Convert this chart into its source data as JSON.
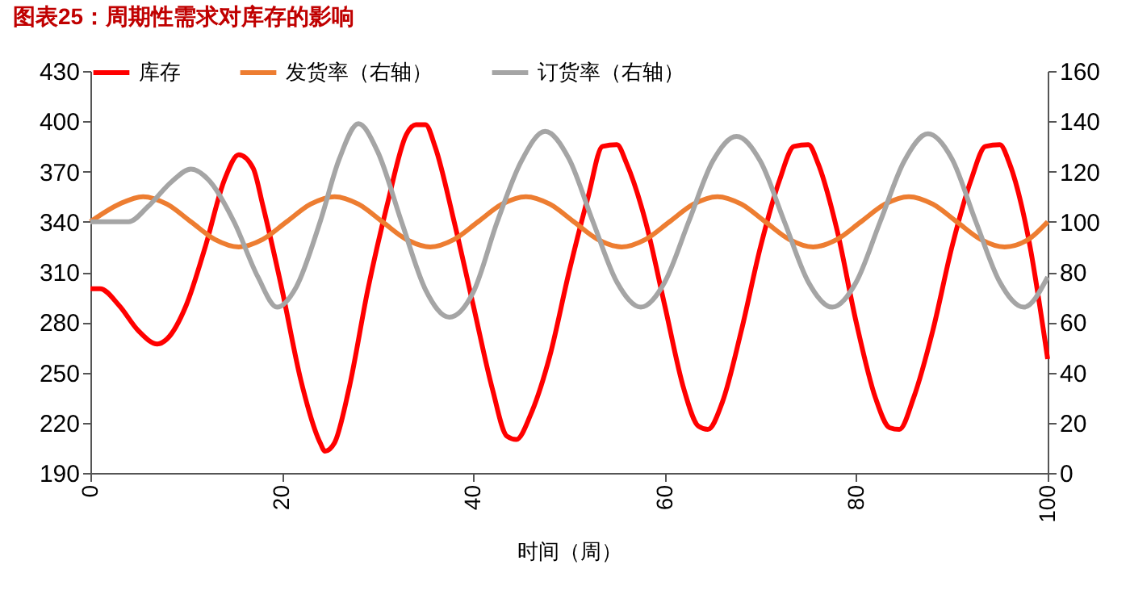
{
  "chart_data": {
    "type": "line",
    "title": "图表25：周期性需求对库存的影响",
    "xlabel": "时间（周）",
    "xlim": [
      0,
      100
    ],
    "xticks": [
      0,
      20,
      40,
      60,
      80,
      100
    ],
    "ylim": [
      190,
      430
    ],
    "yticks": [
      190,
      220,
      250,
      280,
      310,
      340,
      370,
      400,
      430
    ],
    "y2lim": [
      0,
      160
    ],
    "y2ticks": [
      0,
      20,
      40,
      60,
      80,
      100,
      120,
      140,
      160
    ],
    "grid": false,
    "legend": "top",
    "line_style": "solid",
    "series": [
      {
        "name": "库存",
        "color": "#ff0000",
        "x": [
          0,
          1,
          3,
          5,
          7,
          8,
          10,
          12,
          14,
          15.5,
          17,
          18,
          20,
          22,
          24,
          24.5,
          25.5,
          27,
          29,
          31,
          33,
          34,
          35,
          36,
          38,
          40,
          42,
          43.5,
          44.5,
          46,
          48,
          50,
          52,
          53.5,
          55,
          56,
          58,
          60,
          62,
          63.5,
          64.5,
          66,
          68,
          70,
          72,
          73.5,
          75,
          76,
          78,
          80,
          82,
          83.5,
          84.5,
          86,
          88,
          90,
          92,
          93.5,
          95,
          96,
          98,
          100
        ],
        "values": [
          300,
          300,
          290,
          275,
          267,
          270,
          290,
          325,
          365,
          380,
          372,
          350,
          300,
          245,
          208,
          203,
          208,
          240,
          300,
          350,
          392,
          398,
          398,
          385,
          340,
          290,
          240,
          212,
          210,
          225,
          260,
          310,
          355,
          385,
          386,
          375,
          340,
          290,
          240,
          218,
          216,
          232,
          275,
          325,
          365,
          385,
          386,
          375,
          335,
          280,
          235,
          217,
          216,
          235,
          275,
          325,
          365,
          385,
          386,
          375,
          330,
          258
        ]
      },
      {
        "name": "发货率（右轴）",
        "color": "#ed7d31",
        "axis": "y2",
        "x": [
          0,
          3,
          5.5,
          8,
          10.5,
          13,
          15.5,
          18,
          20.5,
          23,
          25.5,
          28,
          30.5,
          33,
          35.5,
          38,
          40.5,
          43,
          45.5,
          48,
          50.5,
          53,
          55.5,
          58,
          60.5,
          63,
          65.5,
          68,
          70.5,
          73,
          75.5,
          78,
          80.5,
          83,
          85.5,
          88,
          90.5,
          93,
          95.5,
          98,
          100
        ],
        "values": [
          100,
          107,
          110,
          107,
          100,
          93,
          90,
          93,
          100,
          107,
          110,
          107,
          100,
          93,
          90,
          93,
          100,
          107,
          110,
          107,
          100,
          93,
          90,
          93,
          100,
          107,
          110,
          107,
          100,
          93,
          90,
          93,
          100,
          107,
          110,
          107,
          100,
          93,
          90,
          93,
          100
        ]
      },
      {
        "name": "订货率（右轴）",
        "color": "#a5a5a5",
        "axis": "y2",
        "x": [
          0,
          4,
          6,
          8.5,
          10.5,
          12.5,
          15,
          17.5,
          19.5,
          21.5,
          24,
          26,
          28,
          30,
          32.5,
          35,
          37.5,
          40,
          42.5,
          45,
          47.5,
          50,
          52.5,
          55,
          57.5,
          60,
          62.5,
          65,
          67.5,
          70,
          72.5,
          75,
          77.5,
          80,
          82.5,
          85,
          87.5,
          90,
          92.5,
          95,
          97.5,
          100
        ],
        "values": [
          100,
          100,
          106,
          116,
          121,
          116,
          100,
          78,
          66,
          74,
          100,
          125,
          139,
          128,
          100,
          73,
          62,
          72,
          100,
          124,
          136,
          125,
          100,
          76,
          66,
          76,
          100,
          124,
          134,
          124,
          100,
          76,
          66,
          76,
          100,
          124,
          135,
          125,
          100,
          76,
          66,
          78
        ]
      }
    ]
  }
}
